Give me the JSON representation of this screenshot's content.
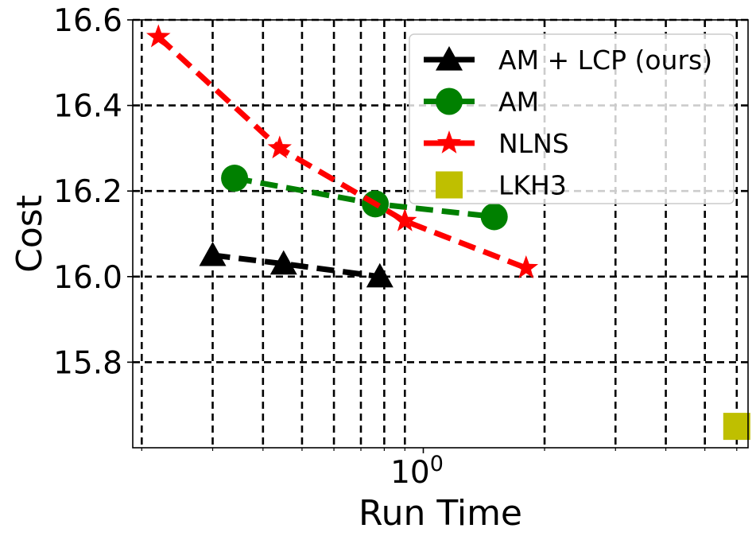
{
  "chart_data": {
    "type": "line",
    "xlabel": "Run Time",
    "ylabel": "Cost",
    "xscale": "log",
    "xlim": [
      0.19,
      6.4
    ],
    "ylim": [
      15.6,
      16.6
    ],
    "grid": true,
    "legend_position": "top-right",
    "x_major_ticks": [
      {
        "value": 1,
        "base": "10",
        "exp": "0"
      }
    ],
    "x_minor_ticks": [
      0.2,
      0.3,
      0.4,
      0.5,
      0.6,
      0.7,
      0.8,
      0.9,
      2,
      3,
      4,
      5,
      6
    ],
    "y_ticks": [
      {
        "value": 15.8,
        "label": "15.8"
      },
      {
        "value": 16.0,
        "label": "16.0"
      },
      {
        "value": 16.2,
        "label": "16.2"
      },
      {
        "value": 16.4,
        "label": "16.4"
      },
      {
        "value": 16.6,
        "label": "16.6"
      }
    ],
    "series": [
      {
        "name": "AM + LCP (ours)",
        "color": "#000000",
        "marker": "triangle",
        "line": "dashed",
        "points": [
          {
            "x": 0.3,
            "y": 16.05
          },
          {
            "x": 0.45,
            "y": 16.03
          },
          {
            "x": 0.78,
            "y": 16.0
          }
        ]
      },
      {
        "name": "AM",
        "color": "#008000",
        "marker": "circle",
        "line": "dashed",
        "points": [
          {
            "x": 0.34,
            "y": 16.23
          },
          {
            "x": 0.76,
            "y": 16.17
          },
          {
            "x": 1.5,
            "y": 16.14
          }
        ]
      },
      {
        "name": "NLNS",
        "color": "#ff0000",
        "marker": "star",
        "line": "dashed",
        "points": [
          {
            "x": 0.22,
            "y": 16.56
          },
          {
            "x": 0.44,
            "y": 16.3
          },
          {
            "x": 0.9,
            "y": 16.13
          },
          {
            "x": 1.8,
            "y": 16.02
          }
        ]
      },
      {
        "name": "LKH3",
        "color": "#bfbf00",
        "marker": "square",
        "line": "none",
        "points": [
          {
            "x": 6.0,
            "y": 15.65
          }
        ]
      }
    ]
  }
}
